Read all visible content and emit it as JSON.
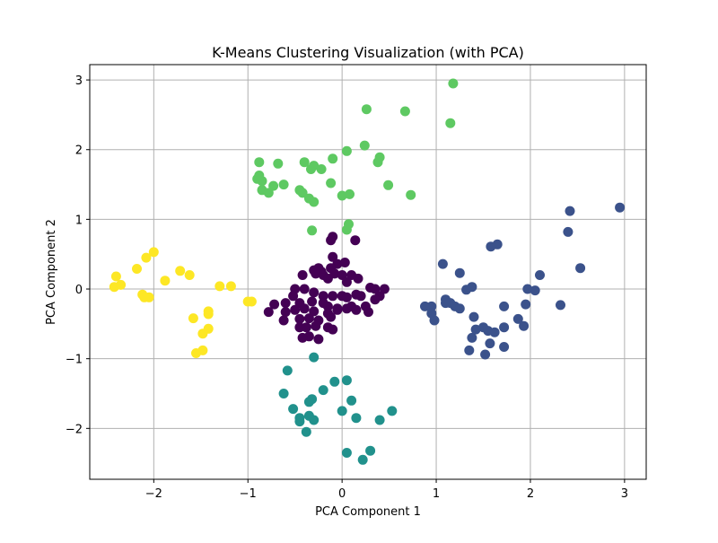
{
  "chart_data": {
    "type": "scatter",
    "title": "K-Means Clustering Visualization (with PCA)",
    "xlabel": "PCA Component 1",
    "ylabel": "PCA Component 2",
    "xlim": [
      -2.68,
      3.23
    ],
    "ylim": [
      -2.73,
      3.22
    ],
    "xticks": [
      -2,
      -1,
      0,
      1,
      2,
      3
    ],
    "xtick_labels": [
      "−2",
      "−1",
      "0",
      "1",
      "2",
      "3"
    ],
    "yticks": [
      -2,
      -1,
      0,
      1,
      2,
      3
    ],
    "ytick_labels": [
      "−2",
      "−1",
      "0",
      "1",
      "2",
      "3"
    ],
    "grid": true,
    "legend": "none",
    "series": [
      {
        "color": "#440154",
        "points": [
          [
            -0.1,
            0.75
          ],
          [
            -0.12,
            0.7
          ],
          [
            0.14,
            0.7
          ],
          [
            -0.1,
            0.46
          ],
          [
            -0.05,
            0.36
          ],
          [
            0.03,
            0.38
          ],
          [
            -0.25,
            0.3
          ],
          [
            -0.3,
            0.27
          ],
          [
            -0.22,
            0.25
          ],
          [
            -0.12,
            0.3
          ],
          [
            -0.28,
            0.22
          ],
          [
            -0.2,
            0.2
          ],
          [
            -0.08,
            0.22
          ],
          [
            0.0,
            0.2
          ],
          [
            0.1,
            0.2
          ],
          [
            -0.42,
            0.2
          ],
          [
            0.05,
            0.1
          ],
          [
            -0.15,
            0.15
          ],
          [
            0.17,
            0.15
          ],
          [
            0.3,
            0.02
          ],
          [
            -0.5,
            0.0
          ],
          [
            -0.4,
            0.0
          ],
          [
            -0.3,
            -0.05
          ],
          [
            -0.2,
            -0.1
          ],
          [
            -0.1,
            -0.1
          ],
          [
            0.0,
            -0.1
          ],
          [
            0.05,
            -0.12
          ],
          [
            0.15,
            -0.08
          ],
          [
            0.2,
            -0.1
          ],
          [
            0.35,
            0.0
          ],
          [
            0.45,
            0.0
          ],
          [
            0.4,
            -0.1
          ],
          [
            -0.52,
            -0.1
          ],
          [
            -0.6,
            -0.2
          ],
          [
            -0.45,
            -0.2
          ],
          [
            -0.32,
            -0.18
          ],
          [
            -0.2,
            -0.2
          ],
          [
            -0.15,
            -0.25
          ],
          [
            -0.05,
            -0.28
          ],
          [
            0.1,
            -0.25
          ],
          [
            0.25,
            -0.25
          ],
          [
            0.35,
            -0.15
          ],
          [
            -0.72,
            -0.22
          ],
          [
            -0.78,
            -0.33
          ],
          [
            -0.6,
            -0.33
          ],
          [
            -0.5,
            -0.3
          ],
          [
            -0.4,
            -0.28
          ],
          [
            -0.3,
            -0.32
          ],
          [
            -0.15,
            -0.35
          ],
          [
            -0.05,
            -0.3
          ],
          [
            0.05,
            -0.28
          ],
          [
            0.15,
            -0.3
          ],
          [
            0.28,
            -0.33
          ],
          [
            -0.62,
            -0.45
          ],
          [
            -0.45,
            -0.43
          ],
          [
            -0.35,
            -0.42
          ],
          [
            -0.25,
            -0.45
          ],
          [
            -0.12,
            -0.4
          ],
          [
            -0.45,
            -0.55
          ],
          [
            -0.38,
            -0.55
          ],
          [
            -0.28,
            -0.53
          ],
          [
            -0.15,
            -0.55
          ],
          [
            -0.1,
            -0.58
          ],
          [
            -0.35,
            -0.68
          ],
          [
            -0.25,
            -0.72
          ],
          [
            -0.42,
            -0.7
          ]
        ]
      },
      {
        "color": "#3b528b",
        "points": [
          [
            2.95,
            1.17
          ],
          [
            2.42,
            1.12
          ],
          [
            2.4,
            0.82
          ],
          [
            2.53,
            0.3
          ],
          [
            1.65,
            0.64
          ],
          [
            1.58,
            0.61
          ],
          [
            1.07,
            0.36
          ],
          [
            1.25,
            0.23
          ],
          [
            2.1,
            0.2
          ],
          [
            1.97,
            0.0
          ],
          [
            2.05,
            -0.02
          ],
          [
            1.38,
            0.03
          ],
          [
            1.32,
            -0.01
          ],
          [
            1.1,
            -0.15
          ],
          [
            1.15,
            -0.2
          ],
          [
            1.2,
            -0.25
          ],
          [
            0.95,
            -0.25
          ],
          [
            0.88,
            -0.25
          ],
          [
            1.25,
            -0.28
          ],
          [
            1.1,
            -0.2
          ],
          [
            0.95,
            -0.35
          ],
          [
            0.98,
            -0.45
          ],
          [
            1.95,
            -0.22
          ],
          [
            1.72,
            -0.25
          ],
          [
            2.32,
            -0.23
          ],
          [
            1.87,
            -0.43
          ],
          [
            1.4,
            -0.4
          ],
          [
            1.93,
            -0.53
          ],
          [
            1.5,
            -0.55
          ],
          [
            1.42,
            -0.58
          ],
          [
            1.55,
            -0.6
          ],
          [
            1.38,
            -0.7
          ],
          [
            1.72,
            -0.55
          ],
          [
            1.62,
            -0.62
          ],
          [
            1.57,
            -0.78
          ],
          [
            1.72,
            -0.83
          ],
          [
            1.35,
            -0.88
          ],
          [
            1.52,
            -0.94
          ]
        ]
      },
      {
        "color": "#21918c",
        "points": [
          [
            -0.58,
            -1.17
          ],
          [
            -0.3,
            -0.98
          ],
          [
            -0.62,
            -1.5
          ],
          [
            -0.08,
            -1.33
          ],
          [
            0.05,
            -1.31
          ],
          [
            -0.2,
            -1.45
          ],
          [
            -0.32,
            -1.58
          ],
          [
            -0.35,
            -1.62
          ],
          [
            0.1,
            -1.6
          ],
          [
            -0.52,
            -1.72
          ],
          [
            0.53,
            -1.75
          ],
          [
            0.0,
            -1.75
          ],
          [
            -0.35,
            -1.82
          ],
          [
            -0.3,
            -1.88
          ],
          [
            -0.45,
            -1.85
          ],
          [
            -0.45,
            -1.9
          ],
          [
            0.15,
            -1.85
          ],
          [
            0.4,
            -1.88
          ],
          [
            -0.38,
            -2.05
          ],
          [
            0.05,
            -2.35
          ],
          [
            0.3,
            -2.32
          ],
          [
            0.22,
            -2.45
          ]
        ]
      },
      {
        "color": "#5ec962",
        "points": [
          [
            1.18,
            2.95
          ],
          [
            0.26,
            2.58
          ],
          [
            0.67,
            2.55
          ],
          [
            1.15,
            2.38
          ],
          [
            0.24,
            2.06
          ],
          [
            0.05,
            1.98
          ],
          [
            0.4,
            1.89
          ],
          [
            0.38,
            1.82
          ],
          [
            -0.88,
            1.82
          ],
          [
            -0.68,
            1.8
          ],
          [
            -0.4,
            1.82
          ],
          [
            -0.3,
            1.77
          ],
          [
            -0.33,
            1.72
          ],
          [
            -0.22,
            1.72
          ],
          [
            -0.1,
            1.87
          ],
          [
            -0.88,
            1.63
          ],
          [
            -0.9,
            1.58
          ],
          [
            -0.85,
            1.55
          ],
          [
            -0.73,
            1.48
          ],
          [
            -0.62,
            1.5
          ],
          [
            -0.85,
            1.42
          ],
          [
            -0.78,
            1.38
          ],
          [
            -0.45,
            1.42
          ],
          [
            -0.42,
            1.38
          ],
          [
            -0.35,
            1.3
          ],
          [
            -0.3,
            1.25
          ],
          [
            -0.12,
            1.52
          ],
          [
            0.49,
            1.49
          ],
          [
            0.73,
            1.35
          ],
          [
            0.0,
            1.34
          ],
          [
            0.08,
            1.36
          ],
          [
            0.07,
            0.93
          ],
          [
            0.05,
            0.85
          ],
          [
            -0.32,
            0.84
          ]
        ]
      },
      {
        "color": "#fde725",
        "points": [
          [
            -2.4,
            0.18
          ],
          [
            -2.42,
            0.03
          ],
          [
            -2.35,
            0.06
          ],
          [
            -2.18,
            0.29
          ],
          [
            -2.08,
            0.45
          ],
          [
            -2.0,
            0.53
          ],
          [
            -1.72,
            0.26
          ],
          [
            -1.62,
            0.2
          ],
          [
            -1.88,
            0.12
          ],
          [
            -2.12,
            -0.08
          ],
          [
            -2.05,
            -0.12
          ],
          [
            -2.1,
            -0.12
          ],
          [
            -1.3,
            0.04
          ],
          [
            -1.18,
            0.04
          ],
          [
            -1.0,
            -0.18
          ],
          [
            -0.96,
            -0.18
          ],
          [
            -1.42,
            -0.32
          ],
          [
            -1.42,
            -0.36
          ],
          [
            -1.58,
            -0.42
          ],
          [
            -1.42,
            -0.57
          ],
          [
            -1.48,
            -0.64
          ],
          [
            -1.48,
            -0.88
          ],
          [
            -1.55,
            -0.92
          ]
        ]
      }
    ]
  }
}
